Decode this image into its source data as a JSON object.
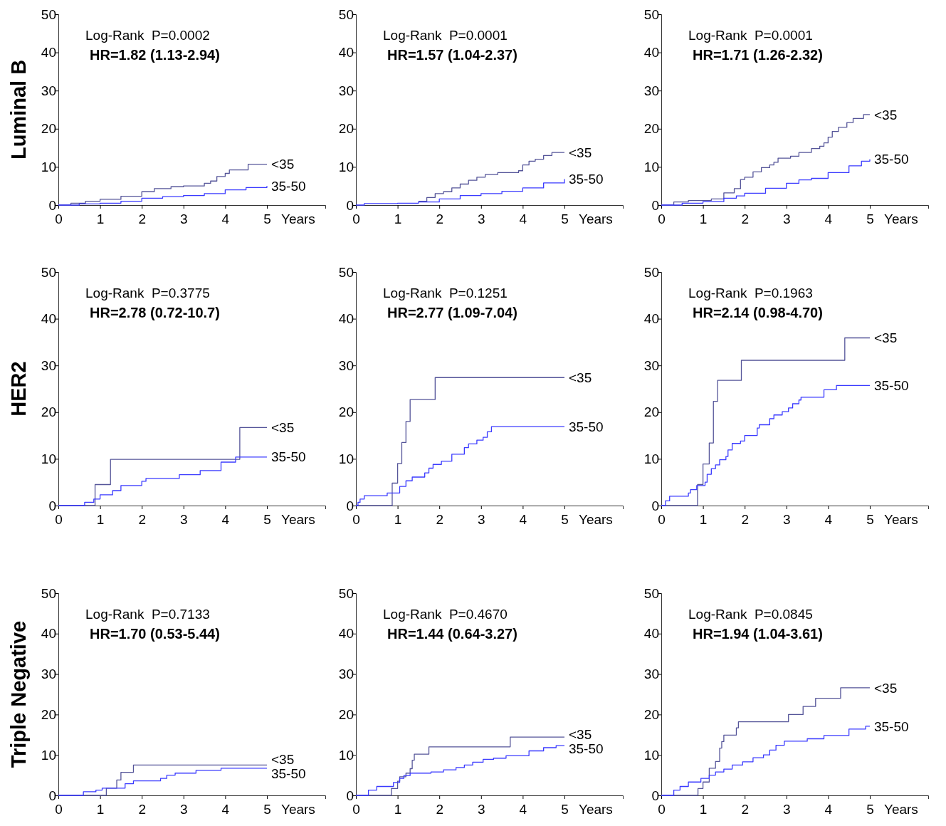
{
  "chart_data": [
    {
      "type": "step",
      "ylabel": "Luminal B",
      "xlabel": "Years",
      "xlim": [
        0,
        6.4
      ],
      "ylim": [
        0,
        50
      ],
      "xticks": [
        0,
        1,
        2,
        3,
        4,
        5
      ],
      "yticks": [
        0,
        10,
        20,
        30,
        40,
        50
      ],
      "annotations": [
        "Log-Rank  P=0.0002",
        "HR=1.82 (1.13-2.94)"
      ],
      "series": [
        {
          "name": "<35",
          "color": "#555599",
          "x": [
            0,
            0.3,
            0.65,
            1.0,
            1.5,
            2.0,
            2.3,
            2.7,
            3.0,
            3.5,
            3.65,
            3.8,
            4.0,
            4.1,
            4.55,
            5.0
          ],
          "values": [
            0,
            0.5,
            1,
            1.5,
            2.3,
            3.5,
            4.3,
            4.8,
            5,
            5.7,
            6.3,
            7.5,
            8.3,
            9.2,
            10.7,
            10.7
          ]
        },
        {
          "name": "35-50",
          "color": "#3b3bff",
          "x": [
            0,
            0.5,
            1,
            1.5,
            2,
            2.5,
            3,
            3.5,
            4,
            4.5,
            5
          ],
          "values": [
            0,
            0.3,
            0.5,
            1,
            1.8,
            2.2,
            2.5,
            3,
            4,
            4.6,
            5
          ]
        }
      ]
    },
    {
      "type": "step",
      "xlabel": "Years",
      "xlim": [
        0,
        6.4
      ],
      "ylim": [
        0,
        50
      ],
      "xticks": [
        0,
        1,
        2,
        3,
        4,
        5
      ],
      "yticks": [
        0,
        10,
        20,
        30,
        40,
        50
      ],
      "annotations": [
        "Log-Rank  P=0.0001",
        "HR=1.57 (1.04-2.37)"
      ],
      "series": [
        {
          "name": "<35",
          "color": "#555599",
          "x": [
            1.5,
            1.7,
            1.9,
            2.1,
            2.3,
            2.5,
            2.7,
            2.9,
            3.1,
            3.4,
            3.9,
            4.0,
            4.15,
            4.3,
            4.5,
            4.7,
            5
          ],
          "values": [
            1,
            2,
            3,
            3.5,
            4.5,
            5.5,
            6.5,
            7.3,
            8,
            8.5,
            9,
            10.5,
            11.5,
            12,
            13,
            13.8,
            13.8
          ]
        },
        {
          "name": "35-50",
          "color": "#3b3bff",
          "x": [
            0,
            0.2,
            1,
            1.5,
            2,
            2.5,
            3,
            3.5,
            4,
            4.5,
            5
          ],
          "values": [
            0,
            0.4,
            0.5,
            0.8,
            1.6,
            2.5,
            3,
            3.6,
            4.5,
            5.8,
            6.8
          ]
        }
      ]
    },
    {
      "type": "step",
      "xlabel": "Years",
      "xlim": [
        0,
        6.4
      ],
      "ylim": [
        0,
        50
      ],
      "xticks": [
        0,
        1,
        2,
        3,
        4,
        5
      ],
      "yticks": [
        0,
        10,
        20,
        30,
        40,
        50
      ],
      "annotations": [
        "Log-Rank  P=0.0001",
        "HR=1.71 (1.26-2.32)"
      ],
      "series": [
        {
          "name": "<35",
          "color": "#555599",
          "x": [
            0,
            0.3,
            0.65,
            1.2,
            1.5,
            1.75,
            1.9,
            2.0,
            2.2,
            2.4,
            2.6,
            2.7,
            2.8,
            3.1,
            3.3,
            3.6,
            3.8,
            3.9,
            4.0,
            4.1,
            4.25,
            4.45,
            4.6,
            4.85,
            5
          ],
          "values": [
            0,
            0.8,
            1.2,
            1.6,
            3.2,
            4.3,
            6.7,
            7.3,
            8.7,
            9.8,
            10.5,
            11.2,
            12.3,
            12.8,
            13.8,
            14.8,
            15.4,
            16.3,
            17.8,
            19.3,
            20.4,
            21.6,
            22.7,
            23.7,
            23.7
          ]
        },
        {
          "name": "35-50",
          "color": "#3b3bff",
          "x": [
            0,
            0.5,
            1,
            1.5,
            1.8,
            2.0,
            2.5,
            3,
            3.3,
            3.6,
            4,
            4.5,
            4.8,
            5
          ],
          "values": [
            0,
            0.5,
            0.9,
            1.8,
            2.4,
            3.1,
            4.4,
            5.7,
            6.6,
            7,
            8.5,
            10.3,
            11.5,
            12
          ]
        }
      ]
    },
    {
      "type": "step",
      "ylabel": "HER2",
      "xlabel": "Years",
      "xlim": [
        0,
        6.4
      ],
      "ylim": [
        0,
        50
      ],
      "xticks": [
        0,
        1,
        2,
        3,
        4,
        5
      ],
      "yticks": [
        0,
        10,
        20,
        30,
        40,
        50
      ],
      "annotations": [
        "Log-Rank  P=0.3775",
        "HR=2.78 (0.72-10.7)"
      ],
      "series": [
        {
          "name": "<35",
          "color": "#555599",
          "x": [
            0,
            0.88,
            1.25,
            4.35,
            5
          ],
          "values": [
            0,
            4.5,
            9.9,
            16.7,
            16.7
          ]
        },
        {
          "name": "35-50",
          "color": "#3b3bff",
          "x": [
            0,
            0.63,
            0.85,
            1.0,
            1.3,
            1.5,
            2.0,
            2.1,
            2.9,
            3.4,
            3.9,
            4.25,
            5
          ],
          "values": [
            0,
            0.7,
            1.4,
            2.3,
            3.2,
            4.3,
            5.2,
            5.8,
            6.6,
            7.5,
            9.3,
            10.4,
            10.4
          ]
        }
      ]
    },
    {
      "type": "step",
      "xlabel": "Years",
      "xlim": [
        0,
        6.4
      ],
      "ylim": [
        0,
        50
      ],
      "xticks": [
        0,
        1,
        2,
        3,
        4,
        5
      ],
      "yticks": [
        0,
        10,
        20,
        30,
        40,
        50
      ],
      "annotations": [
        "Log-Rank  P=0.1251",
        "HR=2.77 (1.09-7.04)"
      ],
      "series": [
        {
          "name": "<35",
          "color": "#555599",
          "x": [
            0,
            0.87,
            1.0,
            1.1,
            1.2,
            1.3,
            1.9,
            5
          ],
          "values": [
            0,
            4.8,
            9,
            13.5,
            18,
            22.7,
            27.4,
            27.4
          ]
        },
        {
          "name": "35-50",
          "color": "#3b3bff",
          "x": [
            0,
            0.05,
            0.1,
            0.2,
            0.75,
            1.05,
            1.2,
            1.35,
            1.65,
            1.75,
            1.85,
            2.05,
            2.3,
            2.6,
            2.7,
            2.9,
            3.05,
            3.15,
            3.25,
            5
          ],
          "values": [
            0,
            0.7,
            1.4,
            2.1,
            2.7,
            4.1,
            5.3,
            6.1,
            7,
            8,
            8.8,
            9.5,
            11,
            12.4,
            13.2,
            14,
            14.6,
            15.8,
            16.9,
            16.9
          ]
        }
      ]
    },
    {
      "type": "step",
      "xlabel": "Years",
      "xlim": [
        0,
        6.4
      ],
      "ylim": [
        0,
        50
      ],
      "xticks": [
        0,
        1,
        2,
        3,
        4,
        5
      ],
      "yticks": [
        0,
        10,
        20,
        30,
        40,
        50
      ],
      "annotations": [
        "Log-Rank  P=0.1963",
        "HR=2.14 (0.98-4.70)"
      ],
      "series": [
        {
          "name": "<35",
          "color": "#555599",
          "x": [
            0,
            0.87,
            1.0,
            1.15,
            1.25,
            1.35,
            1.92,
            4.4,
            5
          ],
          "values": [
            0,
            4.5,
            8.9,
            13.4,
            22.3,
            26.8,
            31.1,
            35.9,
            35.9
          ]
        },
        {
          "name": "35-50",
          "color": "#3b3bff",
          "x": [
            0,
            0.1,
            0.2,
            0.65,
            0.7,
            0.85,
            1.05,
            1.1,
            1.2,
            1.3,
            1.4,
            1.55,
            1.6,
            1.7,
            1.9,
            2.0,
            2.3,
            2.35,
            2.6,
            2.7,
            2.9,
            3.05,
            3.15,
            3.3,
            3.35,
            3.9,
            4.2,
            5
          ],
          "values": [
            0,
            1,
            2,
            2.7,
            3.4,
            4.3,
            5,
            6.7,
            7.9,
            8.7,
            9.8,
            10.5,
            11.9,
            13.3,
            13.8,
            15,
            16.6,
            17.3,
            18.6,
            19.4,
            20.1,
            20.9,
            21.8,
            22.6,
            23.2,
            24.8,
            25.7,
            25.7
          ]
        }
      ]
    },
    {
      "type": "step",
      "ylabel": "Triple Negative",
      "xlabel": "Years",
      "xlim": [
        0,
        6.4
      ],
      "ylim": [
        0,
        50
      ],
      "xticks": [
        0,
        1,
        2,
        3,
        4,
        5
      ],
      "yticks": [
        0,
        10,
        20,
        30,
        40,
        50
      ],
      "annotations": [
        "Log-Rank  P=0.7133",
        "HR=1.70 (0.53-5.44)"
      ],
      "series": [
        {
          "name": "<35",
          "color": "#555599",
          "x": [
            0,
            1.15,
            1.4,
            1.5,
            1.8,
            5
          ],
          "values": [
            0,
            1.8,
            3.8,
            5.7,
            7.5,
            7.5
          ]
        },
        {
          "name": "35-50",
          "color": "#3b3bff",
          "x": [
            0,
            0.6,
            0.9,
            1.05,
            1.6,
            1.8,
            2.45,
            2.6,
            2.8,
            3.3,
            3.9,
            5
          ],
          "values": [
            0,
            0.9,
            1.3,
            1.8,
            2.9,
            3.6,
            4.2,
            5,
            5.5,
            6.2,
            6.7,
            6.7
          ]
        }
      ]
    },
    {
      "type": "step",
      "xlabel": "Years",
      "xlim": [
        0,
        6.4
      ],
      "ylim": [
        0,
        50
      ],
      "xticks": [
        0,
        1,
        2,
        3,
        4,
        5
      ],
      "yticks": [
        0,
        10,
        20,
        30,
        40,
        50
      ],
      "annotations": [
        "Log-Rank  P=0.4670",
        "HR=1.44 (0.64-3.27)"
      ],
      "series": [
        {
          "name": "<35",
          "color": "#555599",
          "x": [
            0,
            0.85,
            1.0,
            1.05,
            1.2,
            1.3,
            1.35,
            1.4,
            1.75,
            3.7,
            5
          ],
          "values": [
            0,
            1.7,
            3.5,
            4.6,
            5.5,
            6.6,
            8.7,
            10.2,
            12,
            14.4,
            14.4
          ]
        },
        {
          "name": "35-50",
          "color": "#3b3bff",
          "x": [
            0,
            0.3,
            0.5,
            0.9,
            1.05,
            1.15,
            1.3,
            1.8,
            2.1,
            2.4,
            2.6,
            2.8,
            3.05,
            3.3,
            3.6,
            4.15,
            4.5,
            4.8,
            5
          ],
          "values": [
            0,
            1.3,
            2.2,
            3.2,
            4.2,
            4.9,
            5.5,
            5.8,
            6.3,
            6.9,
            7.5,
            8.2,
            8.9,
            9.2,
            9.8,
            11,
            11.8,
            12.3,
            12.3
          ]
        }
      ]
    },
    {
      "type": "step",
      "xlabel": "Years",
      "xlim": [
        0,
        6.4
      ],
      "ylim": [
        0,
        50
      ],
      "xticks": [
        0,
        1,
        2,
        3,
        4,
        5
      ],
      "yticks": [
        0,
        10,
        20,
        30,
        40,
        50
      ],
      "annotations": [
        "Log-Rank  P=0.0845",
        "HR=1.94 (1.04-3.61)"
      ],
      "series": [
        {
          "name": "<35",
          "color": "#555599",
          "x": [
            0,
            0.88,
            1.0,
            1.15,
            1.3,
            1.4,
            1.45,
            1.5,
            1.8,
            1.85,
            3.05,
            3.4,
            3.7,
            4.3,
            5
          ],
          "values": [
            0,
            1.7,
            3.3,
            6.7,
            8.4,
            11.7,
            13.3,
            14.9,
            16.7,
            18.2,
            20,
            22,
            24,
            26.6,
            26.6
          ]
        },
        {
          "name": "35-50",
          "color": "#3b3bff",
          "x": [
            0,
            0.3,
            0.45,
            0.65,
            0.95,
            1.15,
            1.3,
            1.5,
            1.7,
            1.95,
            2.2,
            2.45,
            2.6,
            2.75,
            2.95,
            3.5,
            3.9,
            4.5,
            4.9,
            5
          ],
          "values": [
            0,
            1.3,
            2.2,
            3.3,
            4.2,
            5,
            5.8,
            6.5,
            7.5,
            8.3,
            9.3,
            10,
            11.2,
            12.4,
            13.4,
            14,
            14.8,
            16.4,
            17.1,
            17.1
          ]
        }
      ]
    }
  ]
}
